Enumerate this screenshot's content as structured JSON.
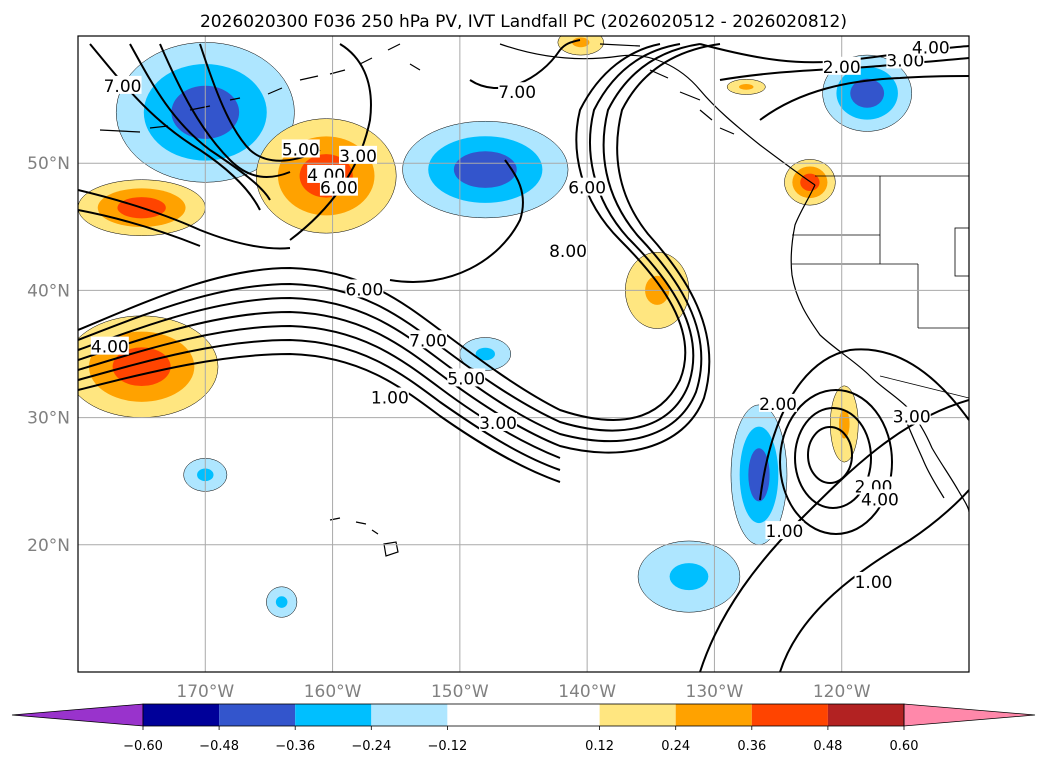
{
  "chart_data": {
    "type": "heatmap",
    "title": "2026020300 F036 250 hPa PV, IVT Landfall PC (2026020512 - 2026020812)",
    "projection": "PlateCarree",
    "extent_lon": [
      -180,
      -110
    ],
    "extent_lat": [
      10,
      60
    ],
    "grid": true,
    "xticks": [
      {
        "value": -170,
        "label": "170°W"
      },
      {
        "value": -160,
        "label": "160°W"
      },
      {
        "value": -150,
        "label": "150°W"
      },
      {
        "value": -140,
        "label": "140°W"
      },
      {
        "value": -130,
        "label": "130°W"
      },
      {
        "value": -120,
        "label": "120°W"
      }
    ],
    "yticks": [
      {
        "value": 20,
        "label": "20°N"
      },
      {
        "value": 30,
        "label": "30°N"
      },
      {
        "value": 40,
        "label": "40°N"
      },
      {
        "value": 50,
        "label": "50°N"
      }
    ],
    "colorbar": {
      "extend": "both",
      "boundaries": [
        -0.72,
        -0.6,
        -0.48,
        -0.36,
        -0.24,
        -0.12,
        0.12,
        0.24,
        0.36,
        0.48,
        0.6,
        0.72
      ],
      "colors": [
        "#9933cc",
        "#000099",
        "#3355cc",
        "#00bfff",
        "#aee6ff",
        "#ffffff",
        "#ffe680",
        "#ffa200",
        "#ff4400",
        "#b22222",
        "#ff88aa"
      ],
      "ticks": [
        {
          "value": -0.6,
          "label": "−0.60"
        },
        {
          "value": -0.48,
          "label": "−0.48"
        },
        {
          "value": -0.36,
          "label": "−0.36"
        },
        {
          "value": -0.24,
          "label": "−0.24"
        },
        {
          "value": -0.12,
          "label": "−0.12"
        },
        {
          "value": 0.12,
          "label": "0.12"
        },
        {
          "value": 0.24,
          "label": "0.24"
        },
        {
          "value": 0.36,
          "label": "0.36"
        },
        {
          "value": 0.48,
          "label": "0.48"
        },
        {
          "value": 0.6,
          "label": "0.60"
        }
      ]
    },
    "shaded_regions": [
      {
        "lon": -170,
        "lat": 54,
        "rlon": 7,
        "rlat": 5.5,
        "levels": [
          "#aee6ff",
          "#00bfff",
          "#3355cc"
        ]
      },
      {
        "lon": -160.5,
        "lat": 49,
        "rlon": 5.5,
        "rlat": 4.5,
        "levels": [
          "#ffe680",
          "#ffa200",
          "#ff4400"
        ]
      },
      {
        "lon": -148,
        "lat": 49.5,
        "rlon": 6.5,
        "rlat": 3.8,
        "levels": [
          "#aee6ff",
          "#00bfff",
          "#3355cc"
        ]
      },
      {
        "lon": -175,
        "lat": 46.5,
        "rlon": 5,
        "rlat": 2.2,
        "levels": [
          "#ffe680",
          "#ffa200",
          "#ff4400"
        ]
      },
      {
        "lon": -175,
        "lat": 34,
        "rlon": 6,
        "rlat": 4,
        "levels": [
          "#ffe680",
          "#ffa200",
          "#ff4400"
        ]
      },
      {
        "lon": -148,
        "lat": 35,
        "rlon": 2,
        "rlat": 1.3,
        "levels": [
          "#aee6ff",
          "#00bfff"
        ]
      },
      {
        "lon": -170,
        "lat": 25.5,
        "rlon": 1.7,
        "rlat": 1.3,
        "levels": [
          "#aee6ff",
          "#00bfff"
        ]
      },
      {
        "lon": -164,
        "lat": 15.5,
        "rlon": 1.2,
        "rlat": 1.2,
        "levels": [
          "#aee6ff",
          "#00bfff"
        ]
      },
      {
        "lon": -132,
        "lat": 17.5,
        "rlon": 4,
        "rlat": 2.8,
        "levels": [
          "#aee6ff",
          "#00bfff"
        ]
      },
      {
        "lon": -126.5,
        "lat": 25.5,
        "rlon": 2.2,
        "rlat": 5.5,
        "levels": [
          "#aee6ff",
          "#00bfff",
          "#3355cc"
        ]
      },
      {
        "lon": -134.5,
        "lat": 40,
        "rlon": 2.5,
        "rlat": 3,
        "levels": [
          "#ffe680",
          "#ffa200"
        ]
      },
      {
        "lon": -119.8,
        "lat": 29.5,
        "rlon": 1.1,
        "rlat": 3,
        "levels": [
          "#ffe680",
          "#ffa200"
        ]
      },
      {
        "lon": -118,
        "lat": 55.5,
        "rlon": 3.5,
        "rlat": 3,
        "levels": [
          "#aee6ff",
          "#00bfff",
          "#3355cc"
        ]
      },
      {
        "lon": -122.5,
        "lat": 48.5,
        "rlon": 2,
        "rlat": 1.8,
        "levels": [
          "#ffe680",
          "#ffa200",
          "#ff4400"
        ]
      },
      {
        "lon": -140.5,
        "lat": 59.5,
        "rlon": 1.8,
        "rlat": 1,
        "levels": [
          "#ffe680",
          "#ffa200"
        ]
      },
      {
        "lon": -127.5,
        "lat": 56,
        "rlon": 1.5,
        "rlat": 0.6,
        "levels": [
          "#ffe680",
          "#ffa200"
        ]
      }
    ],
    "contour_labels": [
      {
        "text": "7.00",
        "lon": -176.5,
        "lat": 56
      },
      {
        "text": "5.00",
        "lon": -162.5,
        "lat": 51
      },
      {
        "text": "3.00",
        "lon": -158,
        "lat": 50.5
      },
      {
        "text": "4.00",
        "lon": -160.5,
        "lat": 49
      },
      {
        "text": "6.00",
        "lon": -159.5,
        "lat": 48
      },
      {
        "text": "7.00",
        "lon": -145.5,
        "lat": 55.5
      },
      {
        "text": "6.00",
        "lon": -140,
        "lat": 48
      },
      {
        "text": "8.00",
        "lon": -141.5,
        "lat": 43
      },
      {
        "text": "6.00",
        "lon": -157.5,
        "lat": 40
      },
      {
        "text": "4.00",
        "lon": -177.5,
        "lat": 35.5
      },
      {
        "text": "7.00",
        "lon": -152.5,
        "lat": 36
      },
      {
        "text": "5.00",
        "lon": -149.5,
        "lat": 33
      },
      {
        "text": "1.00",
        "lon": -155.5,
        "lat": 31.5
      },
      {
        "text": "3.00",
        "lon": -147,
        "lat": 29.5
      },
      {
        "text": "2.00",
        "lon": -125,
        "lat": 31
      },
      {
        "text": "1.00",
        "lon": -124.5,
        "lat": 21
      },
      {
        "text": "3.00",
        "lon": -114.5,
        "lat": 30
      },
      {
        "text": "2.00",
        "lon": -117.5,
        "lat": 24.5
      },
      {
        "text": "4.00",
        "lon": -117,
        "lat": 23.5
      },
      {
        "text": "1.00",
        "lon": -117.5,
        "lat": 17
      },
      {
        "text": "2.00",
        "lon": -120,
        "lat": 57.5
      },
      {
        "text": "3.00",
        "lon": -115,
        "lat": 58
      },
      {
        "text": "4.00",
        "lon": -113,
        "lat": 59
      }
    ]
  }
}
